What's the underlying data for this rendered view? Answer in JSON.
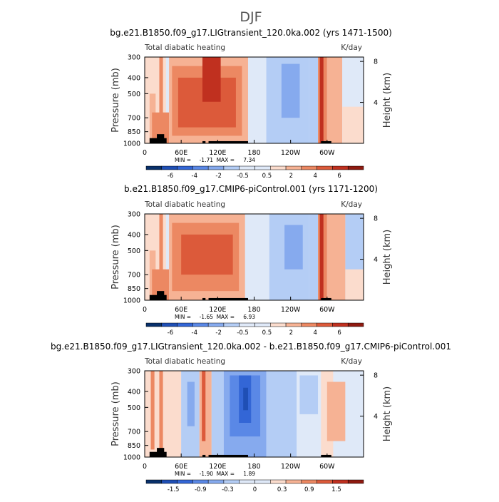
{
  "figure_title": "DJF",
  "chart_data": [
    {
      "type": "heatmap",
      "title": "bg.e21.B1850.f09_g17.LIGtransient_120.0ka.002 (yrs 1471-1500)",
      "subtitle_left": "Total diabatic heating",
      "subtitle_right": "K/day",
      "ylabel": "Pressure (mb)",
      "ylabel_right": "Height (km)",
      "x_ticks": [
        "0",
        "60E",
        "120E",
        "180",
        "120W",
        "60W"
      ],
      "x_tick_lon": [
        0,
        60,
        120,
        180,
        240,
        300
      ],
      "xlim_lon": [
        0,
        360
      ],
      "y_ticks": [
        "300",
        "400",
        "500",
        "700",
        "850",
        "1000"
      ],
      "y_tick_values": [
        300,
        400,
        500,
        700,
        850,
        1000
      ],
      "ylim": [
        1000,
        300
      ],
      "log_scale_y": true,
      "right_ticks": [
        "8",
        "4"
      ],
      "right_tick_km": [
        8,
        4
      ],
      "min_label": "MIN =",
      "min_value": "-1.71",
      "max_label": "MAX =",
      "max_value": "7.34",
      "colorbar_levels": [
        "-6",
        "-4",
        "-2",
        "-0.5",
        "0.5",
        "2",
        "4",
        "6"
      ],
      "regions": [
        {
          "lon": [
            0,
            35
          ],
          "p": [
            300,
            1000
          ],
          "v": 1
        },
        {
          "lon": [
            8,
            18
          ],
          "p": [
            500,
            1000
          ],
          "v": 2
        },
        {
          "lon": [
            24,
            30
          ],
          "p": [
            300,
            950
          ],
          "v": 3
        },
        {
          "lon": [
            12,
            40
          ],
          "p": [
            650,
            1000
          ],
          "v": 3
        },
        {
          "lon": [
            40,
            170
          ],
          "p": [
            300,
            1000
          ],
          "v": 2
        },
        {
          "lon": [
            45,
            160
          ],
          "p": [
            340,
            900
          ],
          "v": 3
        },
        {
          "lon": [
            55,
            150
          ],
          "p": [
            400,
            800
          ],
          "v": 4
        },
        {
          "lon": [
            95,
            125
          ],
          "p": [
            300,
            560
          ],
          "v": 5
        },
        {
          "lon": [
            170,
            200
          ],
          "p": [
            300,
            1000
          ],
          "v": 0
        },
        {
          "lon": [
            200,
            270
          ],
          "p": [
            300,
            1000
          ],
          "v": -1
        },
        {
          "lon": [
            225,
            255
          ],
          "p": [
            330,
            700
          ],
          "v": -2
        },
        {
          "lon": [
            270,
            285
          ],
          "p": [
            300,
            1000
          ],
          "v": -1
        },
        {
          "lon": [
            285,
            300
          ],
          "p": [
            300,
            1000
          ],
          "v": 3
        },
        {
          "lon": [
            288,
            294
          ],
          "p": [
            300,
            1000
          ],
          "v": 5
        },
        {
          "lon": [
            300,
            325
          ],
          "p": [
            300,
            1000
          ],
          "v": 2
        },
        {
          "lon": [
            325,
            360
          ],
          "p": [
            300,
            1000
          ],
          "v": 0
        },
        {
          "lon": [
            325,
            360
          ],
          "p": [
            600,
            1000
          ],
          "v": 1
        }
      ],
      "masks": [
        {
          "lon": [
            8,
            36
          ],
          "p": [
            930,
            1000
          ]
        },
        {
          "lon": [
            20,
            32
          ],
          "p": [
            880,
            1000
          ]
        },
        {
          "lon": [
            95,
            100
          ],
          "p": [
            970,
            1000
          ]
        },
        {
          "lon": [
            105,
            170
          ],
          "p": [
            970,
            1000
          ]
        },
        {
          "lon": [
            290,
            307
          ],
          "p": [
            970,
            1000
          ]
        }
      ]
    },
    {
      "type": "heatmap",
      "title": "b.e21.B1850.f09_g17.CMIP6-piControl.001 (yrs 1171-1200)",
      "subtitle_left": "Total diabatic heating",
      "subtitle_right": "K/day",
      "ylabel": "Pressure (mb)",
      "ylabel_right": "Height (km)",
      "x_ticks": [
        "0",
        "60E",
        "120E",
        "180",
        "120W",
        "60W"
      ],
      "x_tick_lon": [
        0,
        60,
        120,
        180,
        240,
        300
      ],
      "xlim_lon": [
        0,
        360
      ],
      "y_ticks": [
        "300",
        "400",
        "500",
        "700",
        "850",
        "1000"
      ],
      "y_tick_values": [
        300,
        400,
        500,
        700,
        850,
        1000
      ],
      "ylim": [
        1000,
        300
      ],
      "log_scale_y": true,
      "right_ticks": [
        "8",
        "4"
      ],
      "right_tick_km": [
        8,
        4
      ],
      "min_label": "MIN =",
      "min_value": "-1.65",
      "max_label": "MAX =",
      "max_value": "6.93",
      "colorbar_levels": [
        "-6",
        "-4",
        "-2",
        "-0.5",
        "0.5",
        "2",
        "4",
        "6"
      ],
      "regions": [
        {
          "lon": [
            0,
            35
          ],
          "p": [
            300,
            1000
          ],
          "v": 1
        },
        {
          "lon": [
            8,
            18
          ],
          "p": [
            500,
            1000
          ],
          "v": 2
        },
        {
          "lon": [
            24,
            30
          ],
          "p": [
            300,
            950
          ],
          "v": 3
        },
        {
          "lon": [
            12,
            40
          ],
          "p": [
            650,
            1000
          ],
          "v": 3
        },
        {
          "lon": [
            40,
            165
          ],
          "p": [
            300,
            1000
          ],
          "v": 2
        },
        {
          "lon": [
            45,
            155
          ],
          "p": [
            340,
            880
          ],
          "v": 3
        },
        {
          "lon": [
            60,
            145
          ],
          "p": [
            400,
            700
          ],
          "v": 4
        },
        {
          "lon": [
            170,
            205
          ],
          "p": [
            300,
            1000
          ],
          "v": 0
        },
        {
          "lon": [
            205,
            270
          ],
          "p": [
            300,
            1000
          ],
          "v": -1
        },
        {
          "lon": [
            230,
            260
          ],
          "p": [
            350,
            650
          ],
          "v": -2
        },
        {
          "lon": [
            270,
            285
          ],
          "p": [
            300,
            1000
          ],
          "v": -1
        },
        {
          "lon": [
            285,
            300
          ],
          "p": [
            300,
            1000
          ],
          "v": 3
        },
        {
          "lon": [
            288,
            294
          ],
          "p": [
            300,
            1000
          ],
          "v": 5
        },
        {
          "lon": [
            300,
            330
          ],
          "p": [
            300,
            1000
          ],
          "v": 2
        },
        {
          "lon": [
            330,
            360
          ],
          "p": [
            300,
            1000
          ],
          "v": -1
        },
        {
          "lon": [
            330,
            360
          ],
          "p": [
            650,
            1000
          ],
          "v": 1
        }
      ],
      "masks": [
        {
          "lon": [
            8,
            36
          ],
          "p": [
            930,
            1000
          ]
        },
        {
          "lon": [
            20,
            32
          ],
          "p": [
            880,
            1000
          ]
        },
        {
          "lon": [
            95,
            100
          ],
          "p": [
            970,
            1000
          ]
        },
        {
          "lon": [
            105,
            170
          ],
          "p": [
            970,
            1000
          ]
        },
        {
          "lon": [
            290,
            307
          ],
          "p": [
            970,
            1000
          ]
        }
      ]
    },
    {
      "type": "heatmap",
      "title": "bg.e21.B1850.f09_g17.LIGtransient_120.0ka.002 - b.e21.B1850.f09_g17.CMIP6-piControl.001",
      "subtitle_left": "Total diabatic heating",
      "subtitle_right": "K/day",
      "ylabel": "Pressure (mb)",
      "ylabel_right": "Height (km)",
      "x_ticks": [
        "0",
        "60E",
        "120E",
        "180",
        "120W",
        "60W"
      ],
      "x_tick_lon": [
        0,
        60,
        120,
        180,
        240,
        300
      ],
      "xlim_lon": [
        0,
        360
      ],
      "y_ticks": [
        "300",
        "400",
        "500",
        "700",
        "850",
        "1000"
      ],
      "y_tick_values": [
        300,
        400,
        500,
        700,
        850,
        1000
      ],
      "ylim": [
        1000,
        300
      ],
      "log_scale_y": true,
      "right_ticks": [
        "8",
        "4"
      ],
      "right_tick_km": [
        8,
        4
      ],
      "min_label": "MIN =",
      "min_value": "-1.90",
      "max_label": "MAX =",
      "max_value": "1.89",
      "colorbar_levels": [
        "-1.5",
        "-0.9",
        "-0.3",
        "0",
        "0.3",
        "0.9",
        "1.5"
      ],
      "regions": [
        {
          "lon": [
            0,
            60
          ],
          "p": [
            300,
            1000
          ],
          "v": 1
        },
        {
          "lon": [
            10,
            16
          ],
          "p": [
            300,
            900
          ],
          "v": 3
        },
        {
          "lon": [
            24,
            30
          ],
          "p": [
            300,
            1000
          ],
          "v": 3
        },
        {
          "lon": [
            60,
            90
          ],
          "p": [
            300,
            1000
          ],
          "v": -1
        },
        {
          "lon": [
            70,
            82
          ],
          "p": [
            350,
            650
          ],
          "v": -2
        },
        {
          "lon": [
            90,
            110
          ],
          "p": [
            300,
            1000
          ],
          "v": 2
        },
        {
          "lon": [
            94,
            100
          ],
          "p": [
            300,
            800
          ],
          "v": 4
        },
        {
          "lon": [
            110,
            130
          ],
          "p": [
            300,
            1000
          ],
          "v": -1
        },
        {
          "lon": [
            130,
            200
          ],
          "p": [
            300,
            1000
          ],
          "v": -2
        },
        {
          "lon": [
            140,
            190
          ],
          "p": [
            320,
            750
          ],
          "v": -3
        },
        {
          "lon": [
            155,
            175
          ],
          "p": [
            320,
            620
          ],
          "v": -4
        },
        {
          "lon": [
            162,
            170
          ],
          "p": [
            380,
            520
          ],
          "v": -5
        },
        {
          "lon": [
            200,
            250
          ],
          "p": [
            300,
            1000
          ],
          "v": -1
        },
        {
          "lon": [
            250,
            290
          ],
          "p": [
            300,
            1000
          ],
          "v": 0
        },
        {
          "lon": [
            255,
            285
          ],
          "p": [
            320,
            550
          ],
          "v": -1
        },
        {
          "lon": [
            290,
            310
          ],
          "p": [
            300,
            1000
          ],
          "v": 1
        },
        {
          "lon": [
            300,
            330
          ],
          "p": [
            350,
            800
          ],
          "v": 2
        },
        {
          "lon": [
            330,
            360
          ],
          "p": [
            300,
            1000
          ],
          "v": 0
        }
      ],
      "masks": [
        {
          "lon": [
            8,
            36
          ],
          "p": [
            930,
            1000
          ]
        },
        {
          "lon": [
            20,
            32
          ],
          "p": [
            880,
            1000
          ]
        },
        {
          "lon": [
            95,
            100
          ],
          "p": [
            970,
            1000
          ]
        },
        {
          "lon": [
            105,
            170
          ],
          "p": [
            970,
            1000
          ]
        },
        {
          "lon": [
            290,
            307
          ],
          "p": [
            970,
            1000
          ]
        }
      ]
    }
  ],
  "colors": {
    "-6": "#08306b",
    "-5": "#1f4fb5",
    "-4": "#3366d6",
    "-3": "#5a88e6",
    "-2": "#86aaee",
    "-1": "#b4cdf5",
    "0": "#dfe9f8",
    "1": "#fbdccd",
    "2": "#f6b294",
    "3": "#ec8862",
    "4": "#dc5a3a",
    "5": "#c0301f",
    "6": "#8f1a10",
    "mask": "#000000"
  }
}
